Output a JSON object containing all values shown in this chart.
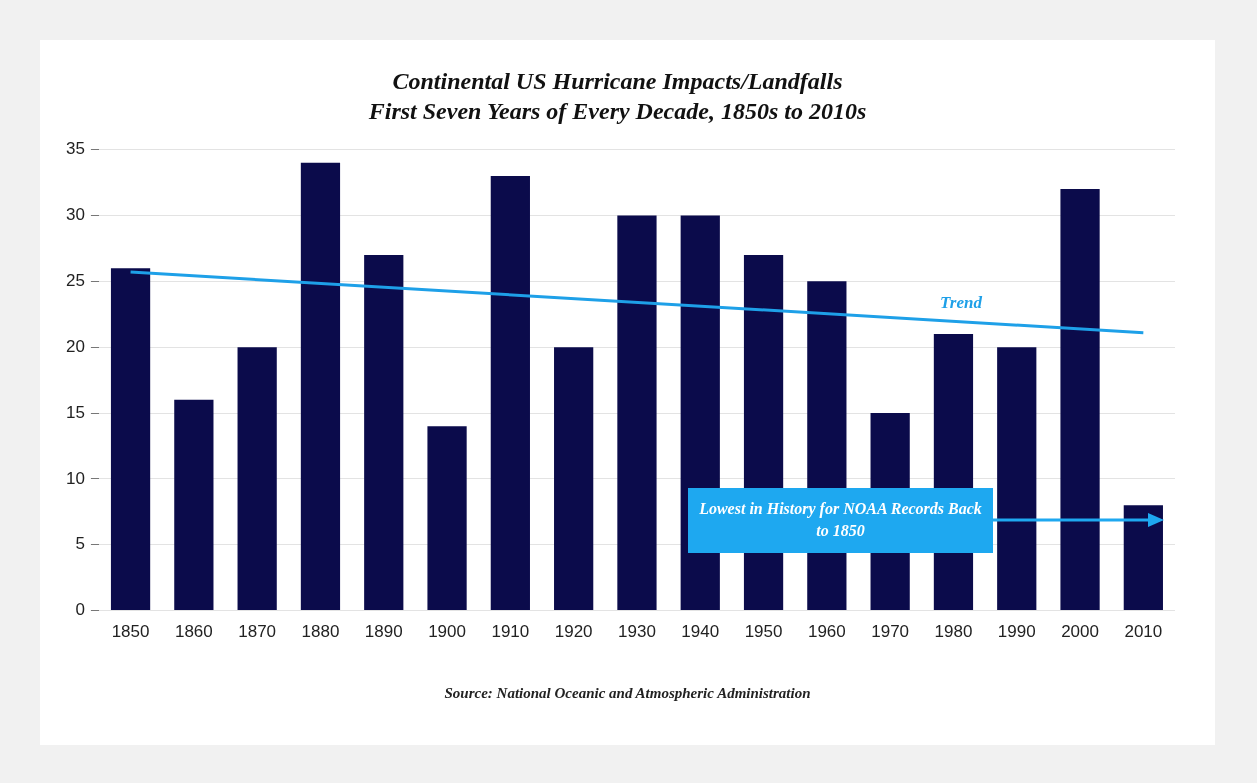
{
  "chart_data": {
    "type": "bar",
    "title": "Continental US Hurricane Impacts/Landfalls",
    "subtitle": "First Seven Years of Every Decade, 1850s to 2010s",
    "categories": [
      "1850",
      "1860",
      "1870",
      "1880",
      "1890",
      "1900",
      "1910",
      "1920",
      "1930",
      "1940",
      "1950",
      "1960",
      "1970",
      "1980",
      "1990",
      "2000",
      "2010"
    ],
    "series": [
      {
        "color": "#0b0b4b",
        "values": [
          26,
          16,
          20,
          34,
          27,
          14,
          33,
          20,
          30,
          30,
          27,
          25,
          15,
          21,
          20,
          32,
          8
        ]
      },
      {
        "type": "line",
        "name": "Trend",
        "color": "#1ea0e8",
        "values": [
          25.7,
          null,
          null,
          null,
          null,
          null,
          null,
          null,
          null,
          null,
          null,
          null,
          null,
          null,
          null,
          null,
          21.1
        ]
      }
    ],
    "ylim": [
      0,
      35
    ],
    "yticks": [
      0,
      5,
      10,
      15,
      20,
      25,
      30,
      35
    ],
    "grid": "y",
    "legend": false,
    "annotations": [
      "Lowest in History for NOAA Records Back to 1850",
      "Source: National Oceanic and Atmospheric Administration"
    ]
  }
}
